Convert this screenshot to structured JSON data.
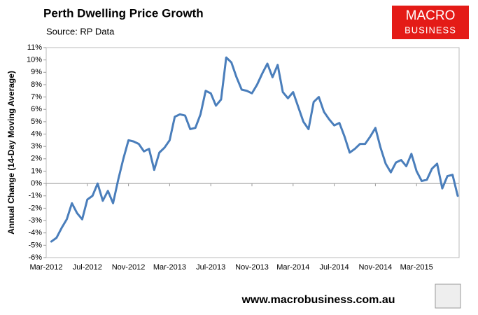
{
  "chart_data": {
    "type": "line",
    "title": "Perth Dwelling Price Growth",
    "subtitle": "Source: RP Data",
    "y_label": "Annual Change (14-Day Moving Average)",
    "categories": [
      "Mar-2012",
      null,
      null,
      null,
      null,
      null,
      null,
      null,
      "Jul-2012",
      null,
      null,
      null,
      null,
      null,
      null,
      null,
      "Nov-2012",
      null,
      null,
      null,
      null,
      null,
      null,
      null,
      "Mar-2013",
      null,
      null,
      null,
      null,
      null,
      null,
      null,
      "Jul-2013",
      null,
      null,
      null,
      null,
      null,
      null,
      null,
      "Nov-2013",
      null,
      null,
      null,
      null,
      null,
      null,
      null,
      "Mar-2014",
      null,
      null,
      null,
      null,
      null,
      null,
      null,
      "Jul-2014",
      null,
      null,
      null,
      null,
      null,
      null,
      null,
      "Nov-2014",
      null,
      null,
      null,
      null,
      null,
      null,
      null,
      "Mar-2015",
      null,
      null,
      null,
      null,
      null,
      null,
      null,
      null
    ],
    "series": [
      {
        "name": "Annual Change",
        "color": "#4a7ebb",
        "values": [
          null,
          -4.7,
          -4.4,
          -3.6,
          -2.9,
          -1.6,
          -2.4,
          -2.9,
          -1.3,
          -1.0,
          0.0,
          -1.4,
          -0.6,
          -1.6,
          0.3,
          2.0,
          3.5,
          3.4,
          3.2,
          2.6,
          2.8,
          1.1,
          2.5,
          2.9,
          3.5,
          5.4,
          5.6,
          5.5,
          4.4,
          4.5,
          5.6,
          7.5,
          7.3,
          6.3,
          6.8,
          10.2,
          9.8,
          8.6,
          7.6,
          7.5,
          7.3,
          8.0,
          8.9,
          9.7,
          8.6,
          9.6,
          7.4,
          6.9,
          7.4,
          6.2,
          5.0,
          4.4,
          6.6,
          7.0,
          5.8,
          5.2,
          4.7,
          4.9,
          3.8,
          2.5,
          2.8,
          3.2,
          3.2,
          3.8,
          4.5,
          2.9,
          1.6,
          0.9,
          1.7,
          1.9,
          1.4,
          2.4,
          1.0,
          0.2,
          0.3,
          1.2,
          1.6,
          -0.4,
          0.6,
          0.7,
          -1.0
        ]
      }
    ],
    "ylim": [
      -6,
      11
    ],
    "yticks": [
      {
        "value": -6,
        "label": "-6%"
      },
      {
        "value": -5,
        "label": "-5%"
      },
      {
        "value": -4,
        "label": "-4%"
      },
      {
        "value": -3,
        "label": "-3%"
      },
      {
        "value": -2,
        "label": "-2%"
      },
      {
        "value": -1,
        "label": "-1%"
      },
      {
        "value": 0,
        "label": "0%"
      },
      {
        "value": 1,
        "label": "1%"
      },
      {
        "value": 2,
        "label": "2%"
      },
      {
        "value": 3,
        "label": "3%"
      },
      {
        "value": 4,
        "label": "4%"
      },
      {
        "value": 5,
        "label": "5%"
      },
      {
        "value": 6,
        "label": "6%"
      },
      {
        "value": 7,
        "label": "7%"
      },
      {
        "value": 8,
        "label": "8%"
      },
      {
        "value": 9,
        "label": "9%"
      },
      {
        "value": 10,
        "label": "10%"
      },
      {
        "value": 11,
        "label": "11%"
      }
    ],
    "grid": false
  },
  "branding": {
    "logo_top": "MACRO",
    "logo_bottom": "BUSINESS",
    "url": "www.macrobusiness.com.au"
  }
}
